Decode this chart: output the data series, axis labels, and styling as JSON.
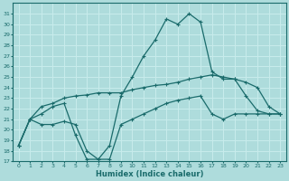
{
  "x": [
    0,
    1,
    2,
    3,
    4,
    5,
    6,
    7,
    8,
    9,
    10,
    11,
    12,
    13,
    14,
    15,
    16,
    17,
    18,
    19,
    20,
    21,
    22,
    23
  ],
  "curve_main": [
    18.5,
    21.0,
    21.5,
    22.2,
    22.5,
    19.5,
    17.2,
    17.2,
    18.5,
    23.2,
    25.0,
    27.0,
    28.5,
    30.5,
    30.0,
    31.0,
    30.2,
    25.5,
    24.8,
    24.8,
    23.2,
    21.8,
    21.5,
    21.5
  ],
  "curve_low": [
    18.5,
    21.0,
    20.5,
    20.5,
    20.8,
    20.5,
    18.0,
    17.2,
    17.2,
    20.5,
    21.0,
    21.5,
    22.0,
    22.5,
    22.8,
    23.0,
    23.2,
    21.5,
    21.0,
    21.5,
    21.5,
    21.5,
    21.5,
    21.5
  ],
  "curve_high": [
    18.5,
    21.0,
    22.2,
    22.5,
    23.0,
    23.2,
    23.3,
    23.5,
    23.5,
    23.5,
    23.8,
    24.0,
    24.2,
    24.3,
    24.5,
    24.8,
    25.0,
    25.2,
    25.0,
    24.8,
    24.5,
    24.0,
    22.2,
    21.5
  ],
  "ylim": [
    17,
    32
  ],
  "xlim_min": -0.5,
  "xlim_max": 23.5,
  "yticks": [
    17,
    18,
    19,
    20,
    21,
    22,
    23,
    24,
    25,
    26,
    27,
    28,
    29,
    30,
    31
  ],
  "xticks": [
    0,
    1,
    2,
    3,
    4,
    5,
    6,
    7,
    8,
    9,
    10,
    11,
    12,
    13,
    14,
    15,
    16,
    17,
    18,
    19,
    20,
    21,
    22,
    23
  ],
  "xlabel": "Humidex (Indice chaleur)",
  "line_color": "#1a6b6b",
  "bg_color": "#aedcdc",
  "grid_color": "#c8ecec"
}
